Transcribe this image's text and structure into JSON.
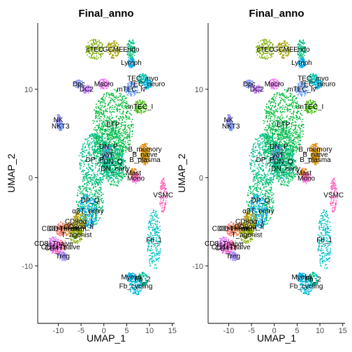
{
  "chart_data": [
    {
      "type": "scatter",
      "title": "Final_anno",
      "xlabel": "UMAP_1",
      "ylabel": "UMAP_2",
      "xlim": [
        -14.5,
        15.5
      ],
      "ylim": [
        -16.5,
        17.5
      ],
      "x_ticks": [
        -10,
        -5,
        0,
        5,
        10,
        15
      ],
      "y_ticks": [
        -10,
        0,
        10
      ],
      "legend": "none",
      "clusters": [
        {
          "name": "cTEC",
          "x": -2.0,
          "y": 14.5,
          "color": "#7cae00"
        },
        {
          "name": "GCME",
          "x": 2.0,
          "y": 14.5,
          "color": "#a3a500"
        },
        {
          "name": "Endo",
          "x": 6.0,
          "y": 14.5,
          "color": "#00bf7d"
        },
        {
          "name": "Lymph",
          "x": 6.0,
          "y": 13.0,
          "color": "#00b0f6"
        },
        {
          "name": "Dpc",
          "x": -5.5,
          "y": 10.6,
          "color": "#8494ff"
        },
        {
          "name": "Macro",
          "x": 0.0,
          "y": 10.6,
          "color": "#e76bf3"
        },
        {
          "name": "DC2",
          "x": -3.8,
          "y": 10.0,
          "color": "#c77cff"
        },
        {
          "name": "TEC_myo",
          "x": 8.5,
          "y": 11.2,
          "color": "#00c1aa"
        },
        {
          "name": "TEC_neuro",
          "x": 9.5,
          "y": 10.6,
          "color": "#00b8e7"
        },
        {
          "name": "mTEC_lv",
          "x": 6.0,
          "y": 10.0,
          "color": "#619cff"
        },
        {
          "name": "mTEC_I",
          "x": 8.0,
          "y": 8.0,
          "color": "#39b600"
        },
        {
          "name": "NK",
          "x": -10.0,
          "y": 6.5,
          "color": "#9590ff"
        },
        {
          "name": "NKT3",
          "x": -9.5,
          "y": 5.8,
          "color": "#7997ff"
        },
        {
          "name": "ETP",
          "x": 2.0,
          "y": 6.0,
          "color": "#00ba38"
        },
        {
          "name": "DN_P",
          "x": 1.0,
          "y": 3.5,
          "color": "#00bc56"
        },
        {
          "name": "B_memory",
          "x": 9.0,
          "y": 3.2,
          "color": "#e58700"
        },
        {
          "name": "B_naive",
          "x": 9.0,
          "y": 2.6,
          "color": "#c99800"
        },
        {
          "name": "γδT",
          "x": 0.8,
          "y": 2.5,
          "color": "#b385ff"
        },
        {
          "name": "DP_P",
          "x": -2.0,
          "y": 2.0,
          "color": "#00c08b"
        },
        {
          "name": "DN_Q",
          "x": 2.0,
          "y": 1.8,
          "color": "#00c0af"
        },
        {
          "name": "B_plasma",
          "x": 9.0,
          "y": 2.0,
          "color": "#d89000"
        },
        {
          "name": "DN_early",
          "x": 2.5,
          "y": 1.0,
          "color": "#00bd5c"
        },
        {
          "name": "Mast",
          "x": 6.5,
          "y": 0.5,
          "color": "#e7861b"
        },
        {
          "name": "Mono",
          "x": 7.0,
          "y": -0.1,
          "color": "#fc61d5"
        },
        {
          "name": "VSMC",
          "x": 13.0,
          "y": -2.0,
          "color": "#ff62bc"
        },
        {
          "name": "DP_Q",
          "x": -3.0,
          "y": -2.6,
          "color": "#00be67"
        },
        {
          "name": "αβT_entry",
          "x": -3.5,
          "y": -3.8,
          "color": "#00a9ff"
        },
        {
          "name": "CD8αα_I",
          "x": -5.5,
          "y": -5.0,
          "color": "#b4a000"
        },
        {
          "name": "CD8αα_II",
          "x": -5.5,
          "y": -5.6,
          "color": "#9da700"
        },
        {
          "name": "CD8+Tmem",
          "x": -9.5,
          "y": -5.8,
          "color": "#f8766d"
        },
        {
          "name": "CD4+Tmem",
          "x": -8.0,
          "y": -5.8,
          "color": "#ea8331"
        },
        {
          "name": "T_agonist",
          "x": -6.0,
          "y": -6.5,
          "color": "#86ac00"
        },
        {
          "name": "CD8+Tnaive",
          "x": -11.0,
          "y": -7.5,
          "color": "#db72fb"
        },
        {
          "name": "CD4+Tnaive",
          "x": -9.5,
          "y": -7.9,
          "color": "#ff6c91"
        },
        {
          "name": "CD4+T",
          "x": -10.5,
          "y": -8.0,
          "color": "#ef67eb"
        },
        {
          "name": "Treg",
          "x": -9.0,
          "y": -8.9,
          "color": "#a58aff"
        },
        {
          "name": "Fb_1",
          "x": 11.0,
          "y": -7.1,
          "color": "#00bfc4"
        },
        {
          "name": "Myelin",
          "x": 6.0,
          "y": -11.3,
          "color": "#00b4ef"
        },
        {
          "name": "Fb_2",
          "x": 8.5,
          "y": -11.5,
          "color": "#00c19c"
        },
        {
          "name": "Fb_cycling",
          "x": 7.0,
          "y": -12.3,
          "color": "#00bcd8"
        }
      ]
    },
    {
      "type": "scatter",
      "title": "Final_anno",
      "xlabel": "UMAP_1",
      "ylabel": "UMAP_2",
      "xlim": [
        -14.5,
        15.5
      ],
      "ylim": [
        -16.5,
        17.5
      ],
      "x_ticks": [
        -10,
        -5,
        0,
        5,
        10,
        15
      ],
      "y_ticks": [
        -10,
        0,
        10
      ],
      "legend": "none",
      "clusters": [
        {
          "name": "cTEC",
          "x": -2.0,
          "y": 14.5,
          "color": "#7cae00"
        },
        {
          "name": "GCME",
          "x": 2.0,
          "y": 14.5,
          "color": "#a3a500"
        },
        {
          "name": "Endo",
          "x": 6.0,
          "y": 14.5,
          "color": "#00bf7d"
        },
        {
          "name": "Lymph",
          "x": 6.0,
          "y": 13.0,
          "color": "#00b0f6"
        },
        {
          "name": "Dpc",
          "x": -5.5,
          "y": 10.6,
          "color": "#8494ff"
        },
        {
          "name": "Macro",
          "x": 0.0,
          "y": 10.6,
          "color": "#e76bf3"
        },
        {
          "name": "DC2",
          "x": -3.8,
          "y": 10.0,
          "color": "#c77cff"
        },
        {
          "name": "TEC_myo",
          "x": 8.5,
          "y": 11.2,
          "color": "#00c1aa"
        },
        {
          "name": "TEC_neuro",
          "x": 9.5,
          "y": 10.6,
          "color": "#00b8e7"
        },
        {
          "name": "mTEC_lv",
          "x": 6.0,
          "y": 10.0,
          "color": "#619cff"
        },
        {
          "name": "mTEC_I",
          "x": 8.0,
          "y": 8.0,
          "color": "#39b600"
        },
        {
          "name": "NK",
          "x": -10.0,
          "y": 6.5,
          "color": "#9590ff"
        },
        {
          "name": "NKT3",
          "x": -9.5,
          "y": 5.8,
          "color": "#7997ff"
        },
        {
          "name": "ETP",
          "x": 2.0,
          "y": 6.0,
          "color": "#00ba38"
        },
        {
          "name": "DN_P",
          "x": 1.0,
          "y": 3.5,
          "color": "#00bc56"
        },
        {
          "name": "B_memory",
          "x": 9.0,
          "y": 3.2,
          "color": "#e58700"
        },
        {
          "name": "B_naive",
          "x": 9.0,
          "y": 2.6,
          "color": "#c99800"
        },
        {
          "name": "γδT",
          "x": 0.8,
          "y": 2.5,
          "color": "#b385ff"
        },
        {
          "name": "DP_P",
          "x": -2.0,
          "y": 2.0,
          "color": "#00c08b"
        },
        {
          "name": "DN_Q",
          "x": 2.0,
          "y": 1.8,
          "color": "#00c0af"
        },
        {
          "name": "B_plasma",
          "x": 9.0,
          "y": 2.0,
          "color": "#d89000"
        },
        {
          "name": "DN_early",
          "x": 2.5,
          "y": 1.0,
          "color": "#00bd5c"
        },
        {
          "name": "Mast",
          "x": 6.5,
          "y": 0.5,
          "color": "#e7861b"
        },
        {
          "name": "Mono",
          "x": 7.0,
          "y": -0.1,
          "color": "#fc61d5"
        },
        {
          "name": "VSMC",
          "x": 13.0,
          "y": -2.0,
          "color": "#ff62bc"
        },
        {
          "name": "DP_Q",
          "x": -3.0,
          "y": -2.6,
          "color": "#00be67"
        },
        {
          "name": "αβT_entry",
          "x": -3.5,
          "y": -3.8,
          "color": "#00a9ff"
        },
        {
          "name": "CD8αα_I",
          "x": -5.5,
          "y": -5.0,
          "color": "#b4a000"
        },
        {
          "name": "CD8αα_II",
          "x": -5.5,
          "y": -5.6,
          "color": "#9da700"
        },
        {
          "name": "CD8+Tmem",
          "x": -9.5,
          "y": -5.8,
          "color": "#f8766d"
        },
        {
          "name": "CD4+Tmem",
          "x": -8.0,
          "y": -5.8,
          "color": "#ea8331"
        },
        {
          "name": "T_agonist",
          "x": -6.0,
          "y": -6.5,
          "color": "#86ac00"
        },
        {
          "name": "CD8+Tnaive",
          "x": -11.0,
          "y": -7.5,
          "color": "#db72fb"
        },
        {
          "name": "CD4+Tnaive",
          "x": -9.5,
          "y": -7.9,
          "color": "#ff6c91"
        },
        {
          "name": "CD4+T",
          "x": -10.5,
          "y": -8.0,
          "color": "#ef67eb"
        },
        {
          "name": "Treg",
          "x": -9.0,
          "y": -8.9,
          "color": "#a58aff"
        },
        {
          "name": "Fb_1",
          "x": 11.0,
          "y": -7.1,
          "color": "#00bfc4"
        },
        {
          "name": "Myelin",
          "x": 6.0,
          "y": -11.3,
          "color": "#00b4ef"
        },
        {
          "name": "Fb_2",
          "x": 8.5,
          "y": -11.5,
          "color": "#00c19c"
        },
        {
          "name": "Fb_cycling",
          "x": 7.0,
          "y": -12.3,
          "color": "#00bcd8"
        }
      ]
    }
  ]
}
